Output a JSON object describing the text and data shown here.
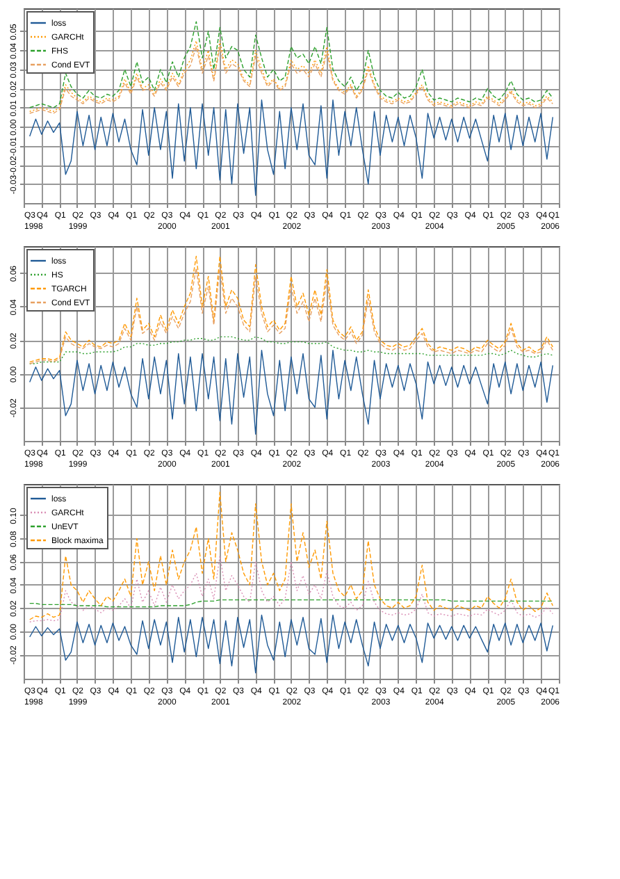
{
  "chart_data": [
    {
      "type": "line",
      "grid": true,
      "legend": "top left",
      "x": [
        "1998-08",
        "1998-09",
        "1998-10",
        "1998-11",
        "1998-12",
        "1999-01",
        "1999-02",
        "1999-03",
        "1999-04",
        "1999-05",
        "1999-06",
        "1999-07",
        "1999-08",
        "1999-09",
        "1999-10",
        "1999-11",
        "1999-12",
        "2000-01",
        "2000-02",
        "2000-03",
        "2000-04",
        "2000-05",
        "2000-06",
        "2000-07",
        "2000-08",
        "2000-09",
        "2000-10",
        "2000-11",
        "2000-12",
        "2001-01",
        "2001-02",
        "2001-03",
        "2001-04",
        "2001-05",
        "2001-06",
        "2001-07",
        "2001-08",
        "2001-09",
        "2001-10",
        "2001-11",
        "2001-12",
        "2002-01",
        "2002-02",
        "2002-03",
        "2002-04",
        "2002-05",
        "2002-06",
        "2002-07",
        "2002-08",
        "2002-09",
        "2002-10",
        "2002-11",
        "2002-12",
        "2003-01",
        "2003-02",
        "2003-03",
        "2003-04",
        "2003-05",
        "2003-06",
        "2003-07",
        "2003-08",
        "2003-09",
        "2003-10",
        "2003-11",
        "2003-12",
        "2004-01",
        "2004-02",
        "2004-03",
        "2004-04",
        "2004-05",
        "2004-06",
        "2004-07",
        "2004-08",
        "2004-09",
        "2004-10",
        "2004-11",
        "2004-12",
        "2005-01",
        "2005-02",
        "2005-03",
        "2005-04",
        "2005-05",
        "2005-06",
        "2005-07",
        "2005-08",
        "2005-09",
        "2005-10",
        "2005-11",
        "2005-12"
      ],
      "xlim": [
        "1998-07",
        "2006-01"
      ],
      "xticks": [
        {
          "value": "1998-07",
          "label": "Q3\n1998"
        },
        {
          "value": "1998-10",
          "label": "Q4"
        },
        {
          "value": "1999-01",
          "label": "Q1"
        },
        {
          "value": "1999-04",
          "label": "Q2\n1999"
        },
        {
          "value": "1999-07",
          "label": "Q3"
        },
        {
          "value": "1999-10",
          "label": "Q4"
        },
        {
          "value": "2000-01",
          "label": "Q1"
        },
        {
          "value": "2000-04",
          "label": "Q2"
        },
        {
          "value": "2000-07",
          "label": "Q3\n2000"
        },
        {
          "value": "2000-10",
          "label": "Q4"
        },
        {
          "value": "2001-01",
          "label": "Q1"
        },
        {
          "value": "2001-04",
          "label": "Q2\n2001"
        },
        {
          "value": "2001-07",
          "label": "Q3"
        },
        {
          "value": "2001-10",
          "label": "Q4"
        },
        {
          "value": "2002-01",
          "label": "Q1"
        },
        {
          "value": "2002-04",
          "label": "Q2\n2002"
        },
        {
          "value": "2002-07",
          "label": "Q3"
        },
        {
          "value": "2002-10",
          "label": "Q4"
        },
        {
          "value": "2003-01",
          "label": "Q1"
        },
        {
          "value": "2003-04",
          "label": "Q2"
        },
        {
          "value": "2003-07",
          "label": "Q3\n2003"
        },
        {
          "value": "2003-10",
          "label": "Q4"
        },
        {
          "value": "2004-01",
          "label": "Q1"
        },
        {
          "value": "2004-04",
          "label": "Q2\n2004"
        },
        {
          "value": "2004-07",
          "label": "Q3"
        },
        {
          "value": "2004-10",
          "label": "Q4"
        },
        {
          "value": "2005-01",
          "label": "Q1"
        },
        {
          "value": "2005-04",
          "label": "Q2\n2005"
        },
        {
          "value": "2005-07",
          "label": "Q3"
        },
        {
          "value": "2005-10",
          "label": "Q4"
        },
        {
          "value": "2006-01",
          "label": "Q1\n2006"
        }
      ],
      "ylim": [
        -0.04,
        0.062
      ],
      "yticks": [
        {
          "value": -0.03,
          "label": "-0.03"
        },
        {
          "value": -0.02,
          "label": "-0.02"
        },
        {
          "value": -0.01,
          "label": "-0.01"
        },
        {
          "value": 0,
          "label": "0.00"
        },
        {
          "value": 0.01,
          "label": "0.01"
        },
        {
          "value": 0.02,
          "label": "0.02"
        },
        {
          "value": 0.03,
          "label": "0.03"
        },
        {
          "value": 0.04,
          "label": "0.04"
        },
        {
          "value": 0.05,
          "label": "0.05"
        }
      ],
      "series": [
        {
          "name": "loss",
          "color": "#1f5a96",
          "line_style": "solid",
          "values": [
            -0.005,
            0.004,
            -0.004,
            0.003,
            -0.003,
            0.002,
            -0.025,
            -0.018,
            0.008,
            -0.01,
            0.006,
            -0.012,
            0.005,
            -0.01,
            0.007,
            -0.008,
            0.004,
            -0.012,
            -0.02,
            0.009,
            -0.015,
            0.01,
            -0.012,
            0.008,
            -0.027,
            0.012,
            -0.018,
            0.01,
            -0.022,
            0.012,
            -0.015,
            0.01,
            -0.028,
            0.009,
            -0.03,
            0.012,
            -0.014,
            0.01,
            -0.036,
            0.014,
            -0.012,
            -0.025,
            0.008,
            -0.022,
            0.01,
            -0.012,
            0.012,
            -0.015,
            -0.02,
            0.011,
            -0.027,
            0.014,
            -0.015,
            0.008,
            -0.01,
            0.01,
            -0.012,
            -0.03,
            0.008,
            -0.015,
            0.006,
            -0.008,
            0.005,
            -0.01,
            0.006,
            -0.006,
            -0.027,
            0.007,
            -0.006,
            0.005,
            -0.007,
            0.004,
            -0.008,
            0.005,
            -0.006,
            0.004,
            -0.007,
            -0.018,
            0.006,
            -0.008,
            0.007,
            -0.012,
            0.006,
            -0.01,
            0.005,
            -0.008,
            0.007,
            -0.017,
            0.005
          ]
        },
        {
          "name": "GARCHt",
          "color": "#ff9900",
          "line_style": "dotted",
          "values": [
            0.008,
            0.009,
            0.01,
            0.009,
            0.008,
            0.01,
            0.022,
            0.018,
            0.015,
            0.013,
            0.016,
            0.014,
            0.013,
            0.015,
            0.014,
            0.016,
            0.025,
            0.018,
            0.028,
            0.02,
            0.022,
            0.017,
            0.025,
            0.02,
            0.028,
            0.022,
            0.03,
            0.035,
            0.045,
            0.03,
            0.04,
            0.025,
            0.045,
            0.03,
            0.035,
            0.033,
            0.025,
            0.022,
            0.04,
            0.03,
            0.022,
            0.025,
            0.02,
            0.022,
            0.035,
            0.03,
            0.032,
            0.028,
            0.035,
            0.028,
            0.042,
            0.025,
            0.02,
            0.018,
            0.022,
            0.016,
            0.02,
            0.032,
            0.022,
            0.016,
            0.014,
            0.013,
            0.015,
            0.013,
            0.014,
            0.018,
            0.022,
            0.015,
            0.012,
            0.013,
            0.012,
            0.011,
            0.013,
            0.012,
            0.011,
            0.013,
            0.012,
            0.016,
            0.014,
            0.012,
            0.015,
            0.019,
            0.014,
            0.012,
            0.013,
            0.011,
            0.012,
            0.016,
            0.013
          ]
        },
        {
          "name": "FHS",
          "color": "#2ca02c",
          "line_style": "dashed",
          "values": [
            0.01,
            0.011,
            0.012,
            0.011,
            0.01,
            0.012,
            0.028,
            0.021,
            0.017,
            0.015,
            0.019,
            0.016,
            0.015,
            0.017,
            0.016,
            0.019,
            0.03,
            0.021,
            0.034,
            0.023,
            0.026,
            0.019,
            0.03,
            0.023,
            0.034,
            0.026,
            0.036,
            0.042,
            0.055,
            0.036,
            0.05,
            0.03,
            0.052,
            0.036,
            0.042,
            0.04,
            0.03,
            0.026,
            0.048,
            0.036,
            0.026,
            0.03,
            0.024,
            0.026,
            0.042,
            0.036,
            0.038,
            0.033,
            0.042,
            0.033,
            0.052,
            0.03,
            0.024,
            0.021,
            0.026,
            0.019,
            0.024,
            0.04,
            0.026,
            0.019,
            0.016,
            0.015,
            0.018,
            0.015,
            0.016,
            0.021,
            0.03,
            0.018,
            0.014,
            0.015,
            0.014,
            0.013,
            0.015,
            0.014,
            0.013,
            0.015,
            0.014,
            0.02,
            0.016,
            0.014,
            0.018,
            0.024,
            0.017,
            0.014,
            0.015,
            0.013,
            0.014,
            0.019,
            0.015
          ]
        },
        {
          "name": "Cond EVT",
          "color": "#e8a060",
          "line_style": "dashed",
          "values": [
            0.007,
            0.008,
            0.009,
            0.008,
            0.007,
            0.009,
            0.02,
            0.016,
            0.014,
            0.012,
            0.015,
            0.013,
            0.012,
            0.014,
            0.013,
            0.015,
            0.023,
            0.017,
            0.026,
            0.019,
            0.02,
            0.016,
            0.023,
            0.019,
            0.026,
            0.021,
            0.028,
            0.032,
            0.042,
            0.028,
            0.037,
            0.024,
            0.042,
            0.028,
            0.033,
            0.031,
            0.024,
            0.021,
            0.037,
            0.028,
            0.021,
            0.024,
            0.019,
            0.021,
            0.033,
            0.028,
            0.03,
            0.026,
            0.033,
            0.026,
            0.039,
            0.024,
            0.019,
            0.017,
            0.021,
            0.015,
            0.019,
            0.03,
            0.021,
            0.015,
            0.013,
            0.012,
            0.014,
            0.012,
            0.013,
            0.017,
            0.021,
            0.014,
            0.011,
            0.012,
            0.011,
            0.01,
            0.012,
            0.011,
            0.01,
            0.012,
            0.011,
            0.015,
            0.013,
            0.011,
            0.014,
            0.018,
            0.013,
            0.011,
            0.012,
            0.01,
            0.011,
            0.015,
            0.012
          ]
        }
      ]
    },
    {
      "type": "line",
      "grid": true,
      "legend": "top left",
      "x": [
        "1998-08",
        "1998-09",
        "1998-10",
        "1998-11",
        "1998-12",
        "1999-01",
        "1999-02",
        "1999-03",
        "1999-04",
        "1999-05",
        "1999-06",
        "1999-07",
        "1999-08",
        "1999-09",
        "1999-10",
        "1999-11",
        "1999-12",
        "2000-01",
        "2000-02",
        "2000-03",
        "2000-04",
        "2000-05",
        "2000-06",
        "2000-07",
        "2000-08",
        "2000-09",
        "2000-10",
        "2000-11",
        "2000-12",
        "2001-01",
        "2001-02",
        "2001-03",
        "2001-04",
        "2001-05",
        "2001-06",
        "2001-07",
        "2001-08",
        "2001-09",
        "2001-10",
        "2001-11",
        "2001-12",
        "2002-01",
        "2002-02",
        "2002-03",
        "2002-04",
        "2002-05",
        "2002-06",
        "2002-07",
        "2002-08",
        "2002-09",
        "2002-10",
        "2002-11",
        "2002-12",
        "2003-01",
        "2003-02",
        "2003-03",
        "2003-04",
        "2003-05",
        "2003-06",
        "2003-07",
        "2003-08",
        "2003-09",
        "2003-10",
        "2003-11",
        "2003-12",
        "2004-01",
        "2004-02",
        "2004-03",
        "2004-04",
        "2004-05",
        "2004-06",
        "2004-07",
        "2004-08",
        "2004-09",
        "2004-10",
        "2004-11",
        "2004-12",
        "2005-01",
        "2005-02",
        "2005-03",
        "2005-04",
        "2005-05",
        "2005-06",
        "2005-07",
        "2005-08",
        "2005-09",
        "2005-10",
        "2005-11",
        "2005-12"
      ],
      "xlim": [
        "1998-07",
        "2006-01"
      ],
      "xticks": [
        {
          "value": "1998-07",
          "label": "Q3\n1998"
        },
        {
          "value": "1998-10",
          "label": "Q4"
        },
        {
          "value": "1999-01",
          "label": "Q1"
        },
        {
          "value": "1999-04",
          "label": "Q2\n1999"
        },
        {
          "value": "1999-07",
          "label": "Q3"
        },
        {
          "value": "1999-10",
          "label": "Q4"
        },
        {
          "value": "2000-01",
          "label": "Q1"
        },
        {
          "value": "2000-04",
          "label": "Q2"
        },
        {
          "value": "2000-07",
          "label": "Q3\n2000"
        },
        {
          "value": "2000-10",
          "label": "Q4"
        },
        {
          "value": "2001-01",
          "label": "Q1"
        },
        {
          "value": "2001-04",
          "label": "Q2\n2001"
        },
        {
          "value": "2001-07",
          "label": "Q3"
        },
        {
          "value": "2001-10",
          "label": "Q4"
        },
        {
          "value": "2002-01",
          "label": "Q1"
        },
        {
          "value": "2002-04",
          "label": "Q2\n2002"
        },
        {
          "value": "2002-07",
          "label": "Q3"
        },
        {
          "value": "2002-10",
          "label": "Q4"
        },
        {
          "value": "2003-01",
          "label": "Q1"
        },
        {
          "value": "2003-04",
          "label": "Q2"
        },
        {
          "value": "2003-07",
          "label": "Q3\n2003"
        },
        {
          "value": "2003-10",
          "label": "Q4"
        },
        {
          "value": "2004-01",
          "label": "Q1"
        },
        {
          "value": "2004-04",
          "label": "Q2\n2004"
        },
        {
          "value": "2004-07",
          "label": "Q3"
        },
        {
          "value": "2004-10",
          "label": "Q4"
        },
        {
          "value": "2005-01",
          "label": "Q1"
        },
        {
          "value": "2005-04",
          "label": "Q2\n2005"
        },
        {
          "value": "2005-07",
          "label": "Q3"
        },
        {
          "value": "2005-10",
          "label": "Q4"
        },
        {
          "value": "2006-01",
          "label": "Q1\n2006"
        }
      ],
      "ylim": [
        -0.04,
        0.076
      ],
      "yticks": [
        {
          "value": -0.02,
          "label": "-0.02"
        },
        {
          "value": 0,
          "label": "0.00"
        },
        {
          "value": 0.02,
          "label": "0.02"
        },
        {
          "value": 0.04,
          "label": "0.04"
        },
        {
          "value": 0.06,
          "label": "0.06"
        }
      ],
      "series": [
        {
          "name": "loss",
          "color": "#1f5a96",
          "line_style": "solid",
          "values": [
            -0.005,
            0.004,
            -0.004,
            0.003,
            -0.003,
            0.002,
            -0.025,
            -0.018,
            0.008,
            -0.01,
            0.006,
            -0.012,
            0.005,
            -0.01,
            0.007,
            -0.008,
            0.004,
            -0.012,
            -0.02,
            0.009,
            -0.015,
            0.01,
            -0.012,
            0.008,
            -0.027,
            0.012,
            -0.018,
            0.01,
            -0.022,
            0.012,
            -0.015,
            0.01,
            -0.028,
            0.009,
            -0.03,
            0.012,
            -0.014,
            0.01,
            -0.036,
            0.014,
            -0.012,
            -0.025,
            0.008,
            -0.022,
            0.01,
            -0.012,
            0.012,
            -0.015,
            -0.02,
            0.011,
            -0.027,
            0.014,
            -0.015,
            0.008,
            -0.01,
            0.01,
            -0.012,
            -0.03,
            0.008,
            -0.015,
            0.006,
            -0.008,
            0.005,
            -0.01,
            0.006,
            -0.006,
            -0.027,
            0.007,
            -0.006,
            0.005,
            -0.007,
            0.004,
            -0.008,
            0.005,
            -0.006,
            0.004,
            -0.007,
            -0.018,
            0.006,
            -0.008,
            0.007,
            -0.012,
            0.006,
            -0.01,
            0.005,
            -0.008,
            0.007,
            -0.017,
            0.005
          ]
        },
        {
          "name": "HS",
          "color": "#2ca02c",
          "line_style": "dotted",
          "values": [
            0.006,
            0.006,
            0.007,
            0.007,
            0.007,
            0.007,
            0.013,
            0.013,
            0.013,
            0.012,
            0.012,
            0.013,
            0.013,
            0.013,
            0.013,
            0.014,
            0.016,
            0.016,
            0.018,
            0.018,
            0.017,
            0.017,
            0.018,
            0.018,
            0.019,
            0.019,
            0.02,
            0.02,
            0.021,
            0.021,
            0.02,
            0.02,
            0.022,
            0.022,
            0.022,
            0.021,
            0.02,
            0.02,
            0.022,
            0.021,
            0.019,
            0.019,
            0.018,
            0.018,
            0.019,
            0.019,
            0.019,
            0.018,
            0.018,
            0.018,
            0.019,
            0.016,
            0.015,
            0.014,
            0.014,
            0.013,
            0.013,
            0.014,
            0.013,
            0.013,
            0.012,
            0.012,
            0.012,
            0.012,
            0.012,
            0.012,
            0.012,
            0.011,
            0.011,
            0.011,
            0.011,
            0.011,
            0.011,
            0.011,
            0.011,
            0.011,
            0.011,
            0.012,
            0.012,
            0.011,
            0.012,
            0.014,
            0.012,
            0.011,
            0.01,
            0.01,
            0.011,
            0.012,
            0.011
          ]
        },
        {
          "name": "TGARCH",
          "color": "#ff9900",
          "line_style": "dashed",
          "values": [
            0.007,
            0.008,
            0.009,
            0.009,
            0.008,
            0.01,
            0.025,
            0.02,
            0.018,
            0.016,
            0.02,
            0.017,
            0.016,
            0.019,
            0.018,
            0.02,
            0.03,
            0.022,
            0.045,
            0.026,
            0.03,
            0.022,
            0.035,
            0.026,
            0.038,
            0.03,
            0.04,
            0.048,
            0.07,
            0.04,
            0.058,
            0.032,
            0.07,
            0.04,
            0.05,
            0.045,
            0.032,
            0.028,
            0.065,
            0.04,
            0.028,
            0.032,
            0.026,
            0.03,
            0.058,
            0.04,
            0.048,
            0.035,
            0.05,
            0.035,
            0.062,
            0.032,
            0.025,
            0.022,
            0.028,
            0.02,
            0.025,
            0.05,
            0.028,
            0.02,
            0.017,
            0.016,
            0.018,
            0.016,
            0.017,
            0.022,
            0.027,
            0.018,
            0.014,
            0.016,
            0.015,
            0.014,
            0.016,
            0.015,
            0.013,
            0.016,
            0.015,
            0.02,
            0.017,
            0.015,
            0.019,
            0.03,
            0.018,
            0.014,
            0.016,
            0.013,
            0.015,
            0.022,
            0.016
          ]
        },
        {
          "name": "Cond EVT",
          "color": "#e8a060",
          "line_style": "dashed",
          "values": [
            0.006,
            0.007,
            0.008,
            0.008,
            0.007,
            0.009,
            0.022,
            0.018,
            0.016,
            0.015,
            0.018,
            0.016,
            0.015,
            0.017,
            0.016,
            0.018,
            0.027,
            0.02,
            0.04,
            0.024,
            0.027,
            0.02,
            0.031,
            0.024,
            0.034,
            0.027,
            0.036,
            0.043,
            0.063,
            0.036,
            0.052,
            0.029,
            0.063,
            0.036,
            0.045,
            0.04,
            0.029,
            0.025,
            0.058,
            0.036,
            0.025,
            0.029,
            0.024,
            0.027,
            0.052,
            0.036,
            0.043,
            0.031,
            0.045,
            0.031,
            0.056,
            0.029,
            0.023,
            0.02,
            0.025,
            0.018,
            0.023,
            0.045,
            0.025,
            0.018,
            0.015,
            0.014,
            0.016,
            0.014,
            0.015,
            0.02,
            0.024,
            0.016,
            0.013,
            0.014,
            0.013,
            0.012,
            0.014,
            0.013,
            0.012,
            0.014,
            0.013,
            0.018,
            0.015,
            0.013,
            0.017,
            0.027,
            0.016,
            0.013,
            0.014,
            0.012,
            0.013,
            0.02,
            0.014
          ]
        }
      ]
    },
    {
      "type": "line",
      "grid": true,
      "legend": "top left",
      "x": [
        "1998-08",
        "1998-09",
        "1998-10",
        "1998-11",
        "1998-12",
        "1999-01",
        "1999-02",
        "1999-03",
        "1999-04",
        "1999-05",
        "1999-06",
        "1999-07",
        "1999-08",
        "1999-09",
        "1999-10",
        "1999-11",
        "1999-12",
        "2000-01",
        "2000-02",
        "2000-03",
        "2000-04",
        "2000-05",
        "2000-06",
        "2000-07",
        "2000-08",
        "2000-09",
        "2000-10",
        "2000-11",
        "2000-12",
        "2001-01",
        "2001-02",
        "2001-03",
        "2001-04",
        "2001-05",
        "2001-06",
        "2001-07",
        "2001-08",
        "2001-09",
        "2001-10",
        "2001-11",
        "2001-12",
        "2002-01",
        "2002-02",
        "2002-03",
        "2002-04",
        "2002-05",
        "2002-06",
        "2002-07",
        "2002-08",
        "2002-09",
        "2002-10",
        "2002-11",
        "2002-12",
        "2003-01",
        "2003-02",
        "2003-03",
        "2003-04",
        "2003-05",
        "2003-06",
        "2003-07",
        "2003-08",
        "2003-09",
        "2003-10",
        "2003-11",
        "2003-12",
        "2004-01",
        "2004-02",
        "2004-03",
        "2004-04",
        "2004-05",
        "2004-06",
        "2004-07",
        "2004-08",
        "2004-09",
        "2004-10",
        "2004-11",
        "2004-12",
        "2005-01",
        "2005-02",
        "2005-03",
        "2005-04",
        "2005-05",
        "2005-06",
        "2005-07",
        "2005-08",
        "2005-09",
        "2005-10",
        "2005-11",
        "2005-12"
      ],
      "xlim": [
        "1998-07",
        "2006-01"
      ],
      "xticks": [
        {
          "value": "1998-07",
          "label": "Q3\n1998"
        },
        {
          "value": "1998-10",
          "label": "Q4"
        },
        {
          "value": "1999-01",
          "label": "Q1"
        },
        {
          "value": "1999-04",
          "label": "Q2\n1999"
        },
        {
          "value": "1999-07",
          "label": "Q3"
        },
        {
          "value": "1999-10",
          "label": "Q4"
        },
        {
          "value": "2000-01",
          "label": "Q1"
        },
        {
          "value": "2000-04",
          "label": "Q2"
        },
        {
          "value": "2000-07",
          "label": "Q3\n2000"
        },
        {
          "value": "2000-10",
          "label": "Q4"
        },
        {
          "value": "2001-01",
          "label": "Q1"
        },
        {
          "value": "2001-04",
          "label": "Q2\n2001"
        },
        {
          "value": "2001-07",
          "label": "Q3"
        },
        {
          "value": "2001-10",
          "label": "Q4"
        },
        {
          "value": "2002-01",
          "label": "Q1"
        },
        {
          "value": "2002-04",
          "label": "Q2\n2002"
        },
        {
          "value": "2002-07",
          "label": "Q3"
        },
        {
          "value": "2002-10",
          "label": "Q4"
        },
        {
          "value": "2003-01",
          "label": "Q1"
        },
        {
          "value": "2003-04",
          "label": "Q2"
        },
        {
          "value": "2003-07",
          "label": "Q3\n2003"
        },
        {
          "value": "2003-10",
          "label": "Q4"
        },
        {
          "value": "2004-01",
          "label": "Q1"
        },
        {
          "value": "2004-04",
          "label": "Q2\n2004"
        },
        {
          "value": "2004-07",
          "label": "Q3"
        },
        {
          "value": "2004-10",
          "label": "Q4"
        },
        {
          "value": "2005-01",
          "label": "Q1"
        },
        {
          "value": "2005-04",
          "label": "Q2\n2005"
        },
        {
          "value": "2005-07",
          "label": "Q3"
        },
        {
          "value": "2005-10",
          "label": "Q4"
        },
        {
          "value": "2006-01",
          "label": "Q1\n2006"
        }
      ],
      "ylim": [
        -0.041,
        0.127
      ],
      "yticks": [
        {
          "value": -0.02,
          "label": "-0.02"
        },
        {
          "value": 0,
          "label": "0.00"
        },
        {
          "value": 0.02,
          "label": "0.02"
        },
        {
          "value": 0.04,
          "label": "0.04"
        },
        {
          "value": 0.06,
          "label": "0.06"
        },
        {
          "value": 0.08,
          "label": "0.08"
        },
        {
          "value": 0.1,
          "label": "0.10"
        }
      ],
      "series": [
        {
          "name": "loss",
          "color": "#1f5a96",
          "line_style": "solid",
          "values": [
            -0.005,
            0.004,
            -0.004,
            0.003,
            -0.003,
            0.002,
            -0.025,
            -0.018,
            0.008,
            -0.01,
            0.006,
            -0.012,
            0.005,
            -0.01,
            0.007,
            -0.008,
            0.004,
            -0.012,
            -0.02,
            0.009,
            -0.015,
            0.01,
            -0.012,
            0.008,
            -0.027,
            0.012,
            -0.018,
            0.01,
            -0.022,
            0.012,
            -0.015,
            0.01,
            -0.028,
            0.009,
            -0.03,
            0.012,
            -0.014,
            0.01,
            -0.036,
            0.014,
            -0.012,
            -0.025,
            0.008,
            -0.022,
            0.01,
            -0.012,
            0.012,
            -0.015,
            -0.02,
            0.011,
            -0.027,
            0.014,
            -0.015,
            0.008,
            -0.01,
            0.01,
            -0.012,
            -0.03,
            0.008,
            -0.015,
            0.006,
            -0.008,
            0.005,
            -0.01,
            0.006,
            -0.006,
            -0.027,
            0.007,
            -0.006,
            0.005,
            -0.007,
            0.004,
            -0.008,
            0.005,
            -0.006,
            0.004,
            -0.007,
            -0.018,
            0.006,
            -0.008,
            0.007,
            -0.012,
            0.006,
            -0.01,
            0.005,
            -0.008,
            0.007,
            -0.017,
            0.005
          ]
        },
        {
          "name": "GARCHt",
          "color": "#d98cb3",
          "line_style": "dotted",
          "values": [
            0.008,
            0.009,
            0.009,
            0.01,
            0.009,
            0.01,
            0.035,
            0.025,
            0.022,
            0.018,
            0.022,
            0.019,
            0.016,
            0.02,
            0.018,
            0.022,
            0.028,
            0.02,
            0.045,
            0.025,
            0.035,
            0.022,
            0.038,
            0.025,
            0.04,
            0.028,
            0.035,
            0.04,
            0.05,
            0.03,
            0.045,
            0.028,
            0.065,
            0.035,
            0.048,
            0.04,
            0.03,
            0.025,
            0.06,
            0.035,
            0.025,
            0.03,
            0.022,
            0.028,
            0.06,
            0.035,
            0.048,
            0.032,
            0.04,
            0.028,
            0.052,
            0.03,
            0.022,
            0.02,
            0.025,
            0.018,
            0.022,
            0.043,
            0.025,
            0.018,
            0.015,
            0.014,
            0.016,
            0.014,
            0.015,
            0.019,
            0.032,
            0.016,
            0.013,
            0.015,
            0.014,
            0.013,
            0.015,
            0.014,
            0.013,
            0.015,
            0.014,
            0.019,
            0.016,
            0.014,
            0.018,
            0.027,
            0.016,
            0.013,
            0.015,
            0.012,
            0.014,
            0.021,
            0.015
          ]
        },
        {
          "name": "UnEVT",
          "color": "#2ca02c",
          "line_style": "dashed",
          "values": [
            0.024,
            0.024,
            0.023,
            0.023,
            0.023,
            0.023,
            0.023,
            0.023,
            0.022,
            0.022,
            0.022,
            0.022,
            0.022,
            0.021,
            0.021,
            0.021,
            0.021,
            0.021,
            0.021,
            0.021,
            0.021,
            0.021,
            0.022,
            0.022,
            0.022,
            0.022,
            0.022,
            0.023,
            0.025,
            0.026,
            0.026,
            0.026,
            0.027,
            0.027,
            0.027,
            0.027,
            0.027,
            0.027,
            0.027,
            0.027,
            0.027,
            0.027,
            0.027,
            0.027,
            0.027,
            0.027,
            0.027,
            0.027,
            0.027,
            0.027,
            0.027,
            0.027,
            0.027,
            0.027,
            0.027,
            0.027,
            0.027,
            0.027,
            0.027,
            0.027,
            0.027,
            0.027,
            0.027,
            0.027,
            0.027,
            0.027,
            0.027,
            0.027,
            0.027,
            0.027,
            0.027,
            0.026,
            0.026,
            0.026,
            0.026,
            0.026,
            0.026,
            0.026,
            0.026,
            0.026,
            0.026,
            0.026,
            0.026,
            0.026,
            0.026,
            0.026,
            0.026,
            0.026,
            0.026
          ]
        },
        {
          "name": "Block maxima",
          "color": "#ff9900",
          "line_style": "dashed",
          "values": [
            0.01,
            0.013,
            0.012,
            0.015,
            0.012,
            0.014,
            0.065,
            0.04,
            0.035,
            0.025,
            0.035,
            0.028,
            0.022,
            0.03,
            0.026,
            0.035,
            0.045,
            0.03,
            0.08,
            0.04,
            0.06,
            0.035,
            0.065,
            0.04,
            0.07,
            0.045,
            0.06,
            0.07,
            0.09,
            0.05,
            0.08,
            0.045,
            0.12,
            0.06,
            0.085,
            0.07,
            0.05,
            0.04,
            0.11,
            0.06,
            0.04,
            0.05,
            0.035,
            0.045,
            0.11,
            0.06,
            0.085,
            0.055,
            0.07,
            0.045,
            0.095,
            0.05,
            0.035,
            0.03,
            0.04,
            0.028,
            0.035,
            0.078,
            0.04,
            0.028,
            0.022,
            0.02,
            0.025,
            0.02,
            0.022,
            0.03,
            0.057,
            0.025,
            0.018,
            0.022,
            0.02,
            0.018,
            0.022,
            0.02,
            0.018,
            0.022,
            0.02,
            0.03,
            0.024,
            0.02,
            0.028,
            0.045,
            0.025,
            0.018,
            0.022,
            0.017,
            0.02,
            0.033,
            0.022
          ]
        }
      ]
    }
  ]
}
